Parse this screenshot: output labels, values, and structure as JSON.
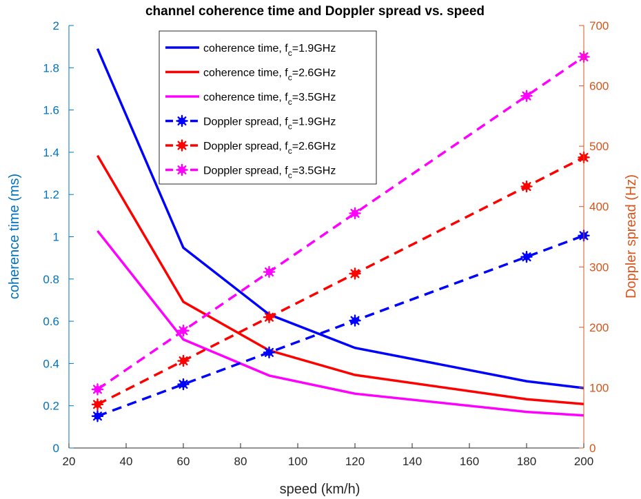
{
  "chart_data": {
    "type": "line",
    "title": "channel coherence time and Doppler spread vs. speed",
    "xlabel": "speed (km/h)",
    "ylabel_left": "coherence time (ms)",
    "ylabel_right": "Doppler spread (Hz)",
    "xlim": [
      20,
      200
    ],
    "ylim_left": [
      0,
      2
    ],
    "ylim_right": [
      0,
      700
    ],
    "x_ticks": [
      "20",
      "40",
      "60",
      "80",
      "100",
      "120",
      "140",
      "160",
      "180",
      "200"
    ],
    "y_left_ticks": [
      "0",
      "0.2",
      "0.4",
      "0.6",
      "0.8",
      "1",
      "1.2",
      "1.4",
      "1.6",
      "1.8",
      "2"
    ],
    "y_right_ticks": [
      "0",
      "100",
      "200",
      "300",
      "400",
      "500",
      "600",
      "700"
    ],
    "x": [
      30,
      60,
      90,
      120,
      180,
      200
    ],
    "grid": false,
    "legend_position": "top-center",
    "series": [
      {
        "label_main": "coherence time, f",
        "label_sub": "c",
        "label_tail": "=1.9GHz",
        "axis": "left",
        "style": "solid",
        "marker": false,
        "color": "#0000FF",
        "values": [
          1.89,
          0.948,
          0.632,
          0.474,
          0.316,
          0.284
        ]
      },
      {
        "label_main": "coherence time, f",
        "label_sub": "c",
        "label_tail": "=2.6GHz",
        "axis": "left",
        "style": "solid",
        "marker": false,
        "color": "#FF0000",
        "values": [
          1.384,
          0.692,
          0.462,
          0.346,
          0.231,
          0.208
        ]
      },
      {
        "label_main": "coherence time, f",
        "label_sub": "c",
        "label_tail": "=3.5GHz",
        "axis": "left",
        "style": "solid",
        "marker": false,
        "color": "#FF00FF",
        "values": [
          1.028,
          0.514,
          0.343,
          0.257,
          0.171,
          0.154
        ]
      },
      {
        "label_main": "Doppler spread, f",
        "label_sub": "c",
        "label_tail": "=1.9GHz",
        "axis": "right",
        "style": "dashed",
        "marker": true,
        "color": "#0000FF",
        "values": [
          52.8,
          105.6,
          158.3,
          211.1,
          316.7,
          351.9
        ]
      },
      {
        "label_main": "Doppler spread, f",
        "label_sub": "c",
        "label_tail": "=2.6GHz",
        "axis": "right",
        "style": "dashed",
        "marker": true,
        "color": "#FF0000",
        "values": [
          72.2,
          144.4,
          216.7,
          288.9,
          433.3,
          481.5
        ]
      },
      {
        "label_main": "Doppler spread, f",
        "label_sub": "c",
        "label_tail": "=3.5GHz",
        "axis": "right",
        "style": "dashed",
        "marker": true,
        "color": "#FF00FF",
        "values": [
          97.2,
          194.4,
          291.7,
          388.9,
          583.3,
          648.1
        ]
      }
    ]
  }
}
